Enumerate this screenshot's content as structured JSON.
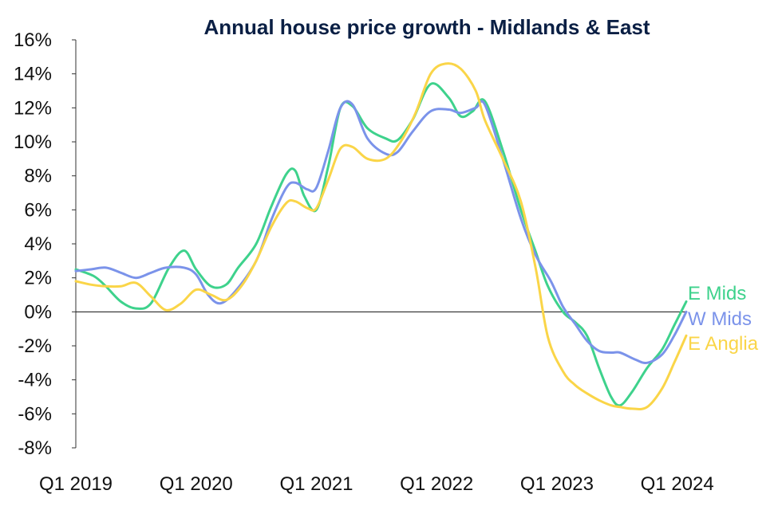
{
  "chart_data": {
    "type": "line",
    "title": "Annual house price growth - Midlands & East",
    "xlabel": "",
    "ylabel": "",
    "ylim": [
      -8,
      16
    ],
    "y_ticks": [
      "16%",
      "14%",
      "12%",
      "10%",
      "8%",
      "6%",
      "4%",
      "2%",
      "0%",
      "-2%",
      "-4%",
      "-6%",
      "-8%"
    ],
    "x_range": [
      0,
      20.3
    ],
    "x_ticks": [
      {
        "label": "Q1 2019",
        "x": 0
      },
      {
        "label": "Q1 2020",
        "x": 4
      },
      {
        "label": "Q1 2021",
        "x": 8
      },
      {
        "label": "Q1 2022",
        "x": 12
      },
      {
        "label": "Q1 2023",
        "x": 16
      },
      {
        "label": "Q1 2024",
        "x": 20
      }
    ],
    "grid": false,
    "zero_line": true,
    "series": [
      {
        "name": "E Mids",
        "color": "#3ed28c",
        "points": [
          [
            0,
            2.5
          ],
          [
            0.6,
            2.1
          ],
          [
            1,
            1.5
          ],
          [
            1.5,
            0.6
          ],
          [
            2,
            0.2
          ],
          [
            2.5,
            0.5
          ],
          [
            3.1,
            2.6
          ],
          [
            3.6,
            3.6
          ],
          [
            4,
            2.5
          ],
          [
            4.5,
            1.5
          ],
          [
            5,
            1.6
          ],
          [
            5.4,
            2.6
          ],
          [
            6,
            4.0
          ],
          [
            6.5,
            6.2
          ],
          [
            7,
            8.1
          ],
          [
            7.3,
            8.3
          ],
          [
            7.6,
            6.8
          ],
          [
            8,
            6.0
          ],
          [
            8.4,
            8.6
          ],
          [
            8.8,
            12.0
          ],
          [
            9.2,
            12.1
          ],
          [
            9.7,
            10.8
          ],
          [
            10.3,
            10.2
          ],
          [
            10.7,
            10.1
          ],
          [
            11.2,
            11.3
          ],
          [
            11.8,
            13.4
          ],
          [
            12.4,
            12.6
          ],
          [
            12.8,
            11.5
          ],
          [
            13.2,
            11.8
          ],
          [
            13.6,
            12.4
          ],
          [
            14.2,
            9.5
          ],
          [
            14.8,
            6.0
          ],
          [
            15.3,
            3.5
          ],
          [
            15.7,
            1.5
          ],
          [
            16.2,
            0.0
          ],
          [
            16.6,
            -0.6
          ],
          [
            17.0,
            -1.4
          ],
          [
            17.4,
            -3.3
          ],
          [
            17.8,
            -5.0
          ],
          [
            18.1,
            -5.5
          ],
          [
            18.5,
            -4.7
          ],
          [
            19.0,
            -3.3
          ],
          [
            19.5,
            -2.2
          ],
          [
            19.9,
            -0.8
          ],
          [
            20.3,
            0.6
          ]
        ]
      },
      {
        "name": "W Mids",
        "color": "#7b93ea",
        "points": [
          [
            0,
            2.4
          ],
          [
            0.5,
            2.5
          ],
          [
            1,
            2.6
          ],
          [
            1.5,
            2.3
          ],
          [
            2,
            2.0
          ],
          [
            2.5,
            2.3
          ],
          [
            3,
            2.6
          ],
          [
            3.6,
            2.6
          ],
          [
            4,
            2.2
          ],
          [
            4.4,
            1.0
          ],
          [
            4.8,
            0.5
          ],
          [
            5.3,
            1.2
          ],
          [
            6,
            3.0
          ],
          [
            6.5,
            5.4
          ],
          [
            7,
            7.3
          ],
          [
            7.3,
            7.6
          ],
          [
            7.7,
            7.2
          ],
          [
            8,
            7.3
          ],
          [
            8.4,
            9.5
          ],
          [
            8.8,
            12.0
          ],
          [
            9.2,
            12.2
          ],
          [
            9.7,
            10.2
          ],
          [
            10.3,
            9.3
          ],
          [
            10.7,
            9.4
          ],
          [
            11.2,
            10.6
          ],
          [
            11.8,
            11.8
          ],
          [
            12.4,
            11.9
          ],
          [
            12.8,
            11.7
          ],
          [
            13.3,
            12.0
          ],
          [
            13.6,
            12.2
          ],
          [
            14.2,
            9.0
          ],
          [
            14.8,
            5.5
          ],
          [
            15.3,
            3.3
          ],
          [
            15.8,
            1.8
          ],
          [
            16.2,
            0.3
          ],
          [
            16.6,
            -0.7
          ],
          [
            17.0,
            -1.7
          ],
          [
            17.4,
            -2.3
          ],
          [
            17.8,
            -2.4
          ],
          [
            18.1,
            -2.4
          ],
          [
            18.6,
            -2.8
          ],
          [
            19.0,
            -3.0
          ],
          [
            19.5,
            -2.5
          ],
          [
            19.9,
            -1.4
          ],
          [
            20.3,
            0.0
          ]
        ]
      },
      {
        "name": "E Anglia",
        "color": "#fad548",
        "points": [
          [
            0,
            1.8
          ],
          [
            0.5,
            1.6
          ],
          [
            1,
            1.5
          ],
          [
            1.5,
            1.5
          ],
          [
            2,
            1.7
          ],
          [
            2.5,
            0.9
          ],
          [
            3,
            0.1
          ],
          [
            3.5,
            0.5
          ],
          [
            4,
            1.3
          ],
          [
            4.5,
            1.0
          ],
          [
            5,
            0.7
          ],
          [
            5.5,
            1.5
          ],
          [
            6,
            3.0
          ],
          [
            6.5,
            5.0
          ],
          [
            7,
            6.4
          ],
          [
            7.3,
            6.5
          ],
          [
            7.7,
            6.1
          ],
          [
            8,
            6.1
          ],
          [
            8.4,
            7.8
          ],
          [
            8.8,
            9.6
          ],
          [
            9.2,
            9.7
          ],
          [
            9.7,
            9.0
          ],
          [
            10.3,
            9.0
          ],
          [
            10.8,
            10.0
          ],
          [
            11.3,
            11.7
          ],
          [
            11.8,
            14.0
          ],
          [
            12.3,
            14.6
          ],
          [
            12.8,
            14.3
          ],
          [
            13.3,
            13.0
          ],
          [
            13.6,
            11.3
          ],
          [
            14.2,
            9.0
          ],
          [
            14.8,
            6.5
          ],
          [
            15.3,
            2.5
          ],
          [
            15.7,
            -1.5
          ],
          [
            16.2,
            -3.5
          ],
          [
            16.6,
            -4.3
          ],
          [
            17.0,
            -4.8
          ],
          [
            17.4,
            -5.2
          ],
          [
            17.8,
            -5.5
          ],
          [
            18.1,
            -5.6
          ],
          [
            18.5,
            -5.7
          ],
          [
            19.0,
            -5.6
          ],
          [
            19.5,
            -4.5
          ],
          [
            19.9,
            -3.0
          ],
          [
            20.3,
            -1.4
          ]
        ]
      }
    ]
  }
}
